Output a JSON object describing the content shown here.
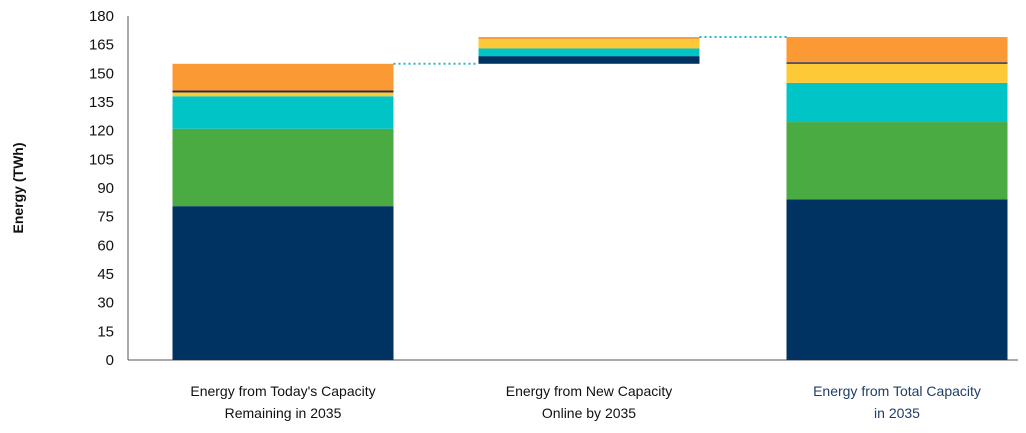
{
  "chart_data": {
    "type": "bar",
    "subtype": "stacked-waterfall",
    "title": "",
    "xlabel": "",
    "ylabel": "Energy (TWh)",
    "ylim": [
      0,
      180
    ],
    "yticks": [
      0,
      15,
      30,
      45,
      60,
      75,
      90,
      105,
      120,
      135,
      150,
      165,
      180
    ],
    "grid": false,
    "legend": "none",
    "categories": [
      {
        "label_lines": [
          "Energy from Today's Capacity",
          "Remaining in 2035"
        ],
        "highlight": false
      },
      {
        "label_lines": [
          "Energy from New Capacity",
          "Online by 2035"
        ],
        "highlight": false
      },
      {
        "label_lines": [
          "Energy from Total Capacity",
          "in 2035"
        ],
        "highlight": true
      }
    ],
    "stacks": [
      {
        "base": 0,
        "segments": [
          {
            "value": 80.5,
            "color": "#003362"
          },
          {
            "value": 40.5,
            "color": "#4aab43"
          },
          {
            "value": 17,
            "color": "#00c4c6"
          },
          {
            "value": 2,
            "color": "#fdc937"
          },
          {
            "value": 1,
            "color": "#1b2850"
          },
          {
            "value": 14,
            "color": "#fb9934"
          }
        ]
      },
      {
        "base": 155,
        "segments": [
          {
            "value": 4,
            "color": "#003362"
          },
          {
            "value": 4,
            "color": "#00c4c6"
          },
          {
            "value": 5,
            "color": "#fdc937"
          },
          {
            "value": 1,
            "color": "#fb9934"
          }
        ]
      },
      {
        "base": 0,
        "segments": [
          {
            "value": 84,
            "color": "#003362"
          },
          {
            "value": 40.5,
            "color": "#4aab43"
          },
          {
            "value": 20.5,
            "color": "#00c4c6"
          },
          {
            "value": 10,
            "color": "#fdc937"
          },
          {
            "value": 0.8,
            "color": "#1b2850"
          },
          {
            "value": 13.2,
            "color": "#fb9934"
          }
        ]
      }
    ],
    "connectors": [
      {
        "from_bar": 0,
        "to_bar": 1,
        "y": 155,
        "color": "#1fb9c7"
      },
      {
        "from_bar": 1,
        "to_bar": 2,
        "y": 169,
        "color": "#1fb9c7"
      }
    ]
  }
}
